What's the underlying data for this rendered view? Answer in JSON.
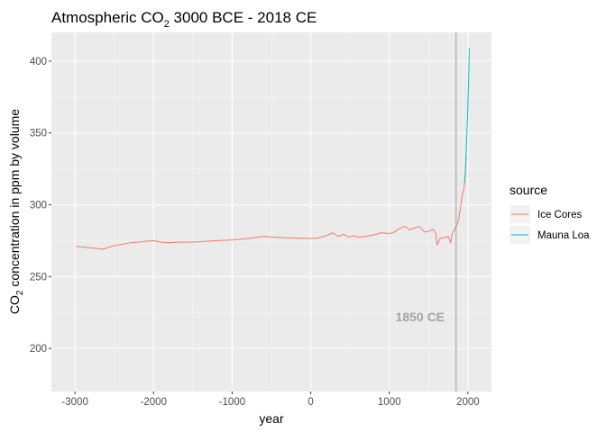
{
  "chart_data": {
    "type": "line",
    "title": "Atmospheric CO",
    "title_sub": "2",
    "title_rest": " 3000 BCE - 2018 CE",
    "xlabel": "year",
    "ylabel_main": "CO",
    "ylabel_sub": "2",
    "ylabel_rest": " concentration in ppm by volume",
    "xlim": [
      -3300,
      2300
    ],
    "ylim": [
      170,
      420
    ],
    "xticks": [
      -3000,
      -2000,
      -1000,
      0,
      1000,
      2000
    ],
    "xtick_labels": [
      "-3000",
      "-2000",
      "-1000",
      "0",
      "1000",
      "2000"
    ],
    "yticks": [
      200,
      250,
      300,
      350,
      400
    ],
    "ytick_labels": [
      "200",
      "250",
      "300",
      "350",
      "400"
    ],
    "grid": true,
    "legend": {
      "title": "source",
      "position": "right"
    },
    "series": [
      {
        "name": "Ice Cores",
        "color": "#F8766D",
        "x": [
          -2990,
          -2700,
          -2650,
          -2500,
          -2300,
          -2000,
          -1900,
          -1800,
          -1700,
          -1500,
          -1200,
          -1000,
          -800,
          -600,
          -500,
          -300,
          0,
          100,
          200,
          280,
          350,
          420,
          480,
          550,
          600,
          700,
          800,
          900,
          1000,
          1050,
          1100,
          1150,
          1200,
          1260,
          1300,
          1380,
          1450,
          1500,
          1560,
          1590,
          1610,
          1650,
          1700,
          1750,
          1780,
          1800,
          1830,
          1860,
          1880,
          1900,
          1920,
          1940,
          1950,
          1960,
          1970,
          1978
        ],
        "y": [
          271,
          269.5,
          269,
          271.5,
          273.5,
          275,
          274,
          273.5,
          274,
          274,
          275,
          275.5,
          276.5,
          278,
          277.5,
          277,
          276.5,
          277,
          278.5,
          280.5,
          278,
          279.5,
          277.5,
          278.5,
          277.5,
          278,
          279,
          280.5,
          280,
          280.5,
          282.5,
          284,
          285,
          282.5,
          283.5,
          285,
          281,
          281.5,
          283,
          280,
          272,
          277,
          277,
          278,
          273.5,
          280,
          283,
          286,
          289,
          296,
          304,
          309.5,
          311,
          317,
          326,
          334
        ]
      },
      {
        "name": "Mauna Loa",
        "color": "#00BFC4",
        "x": [
          1958,
          1965,
          1970,
          1975,
          1980,
          1985,
          1990,
          1995,
          2000,
          2005,
          2010,
          2015,
          2018
        ],
        "y": [
          315,
          320,
          325.5,
          331,
          338.5,
          346,
          354,
          360.5,
          369.5,
          379.5,
          389.5,
          401,
          409
        ]
      }
    ],
    "vline": {
      "x": 1850,
      "label": "1850 CE",
      "label_y": 222
    }
  }
}
